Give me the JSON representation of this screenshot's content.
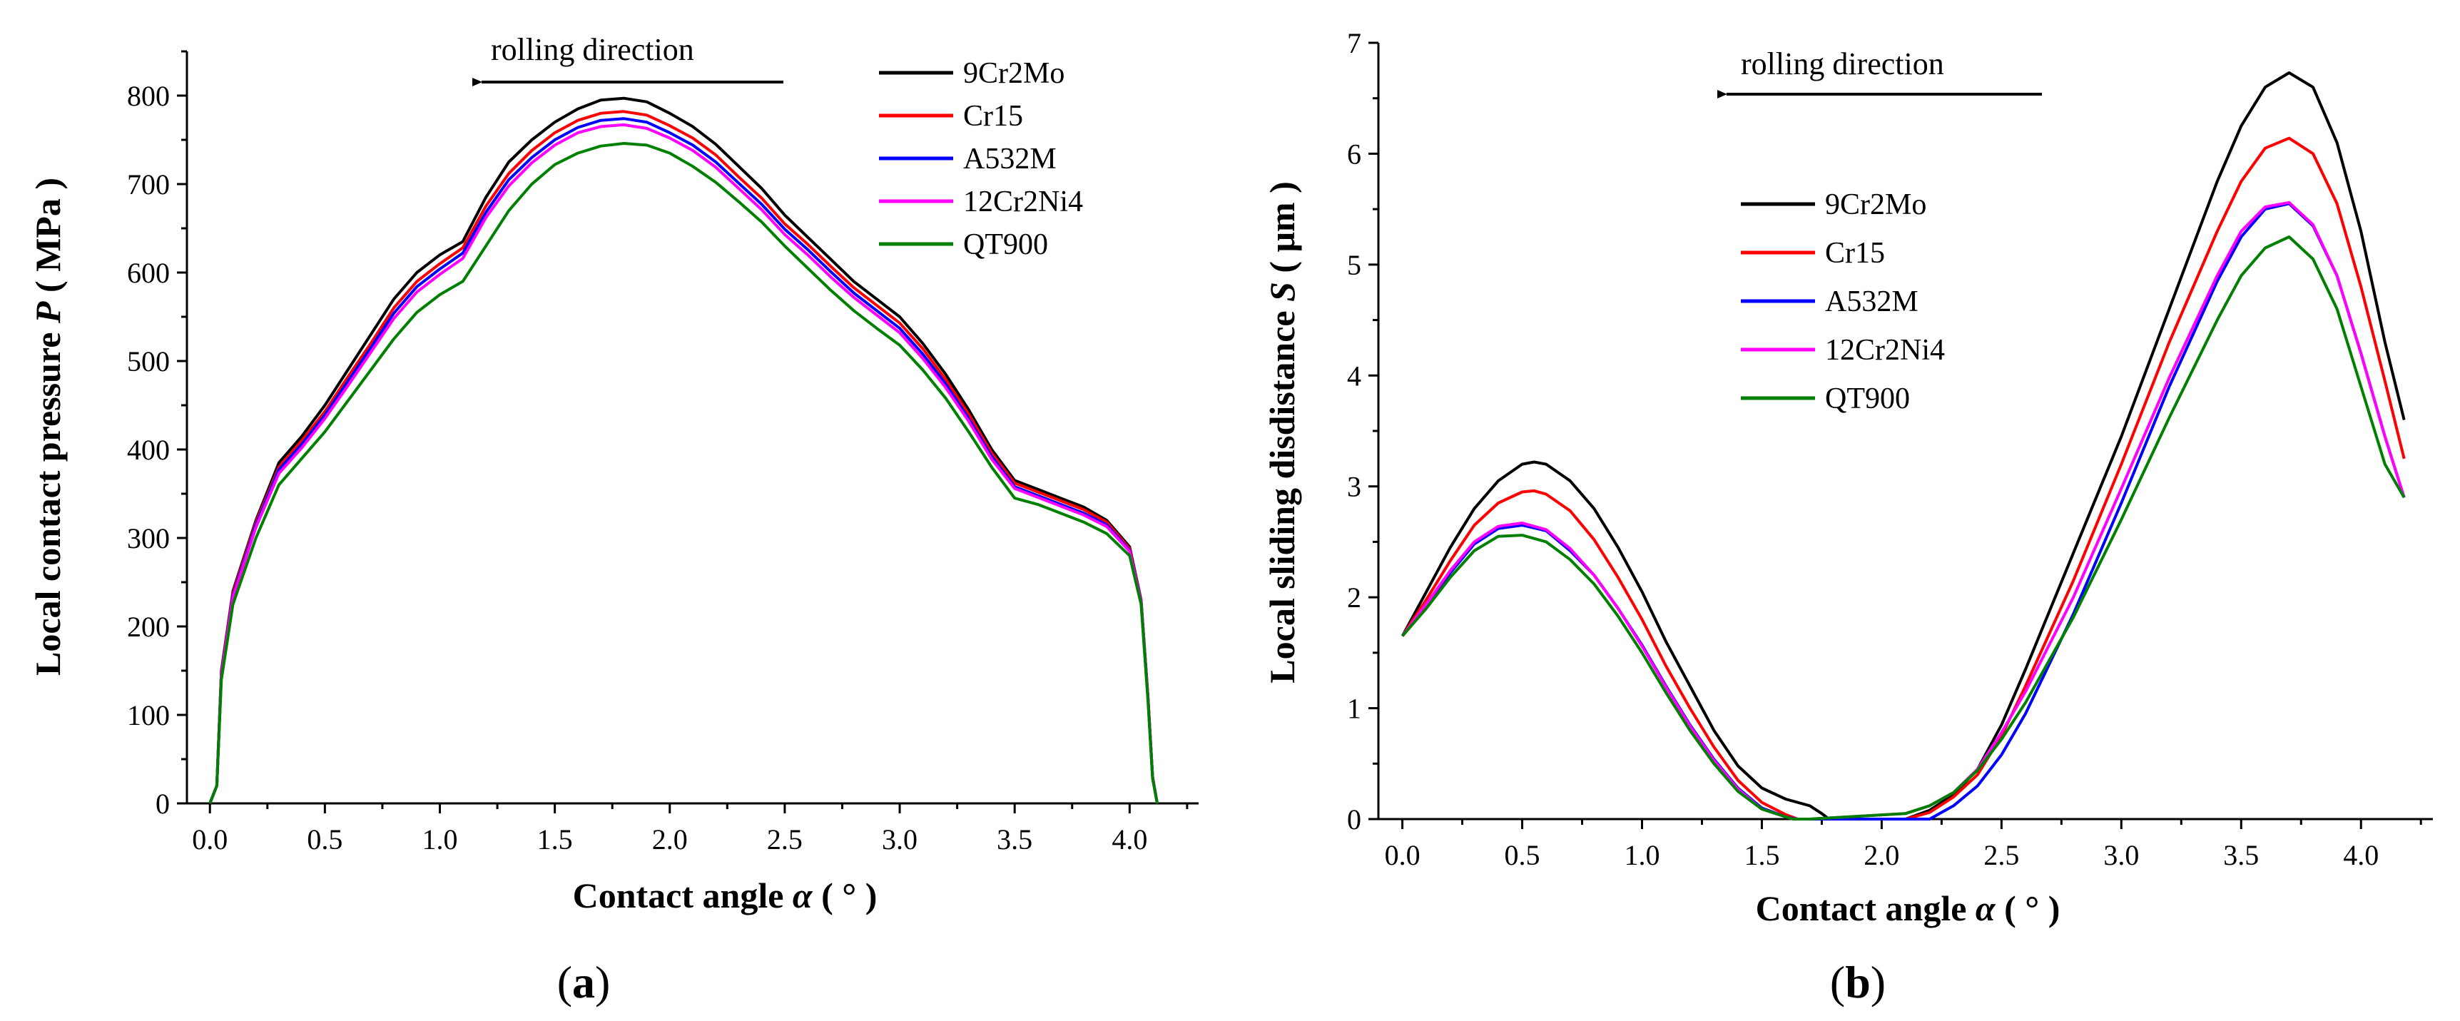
{
  "figure": {
    "panel_labels": [
      {
        "open": "(",
        "letter": "a",
        "close": ")"
      },
      {
        "open": "(",
        "letter": "b",
        "close": ")"
      }
    ]
  },
  "colors": {
    "9Cr2Mo": "#000000",
    "Cr15": "#ff0000",
    "A532M": "#0000ff",
    "12Cr2Ni4": "#ff00ff",
    "QT900": "#008000"
  },
  "chart_data": [
    {
      "type": "line",
      "panel": "a",
      "title": "",
      "annotation": "rolling direction",
      "xlabel": {
        "main": "Contact angle ",
        "var": "α",
        "unit": " ( ° )"
      },
      "ylabel": {
        "main": "Local contact pressure ",
        "var": "P",
        "unit": " ( MPa )"
      },
      "xlim": [
        -0.1,
        4.3
      ],
      "ylim": [
        0,
        850
      ],
      "xticks": [
        "0.0",
        "0.5",
        "1.0",
        "1.5",
        "2.0",
        "2.5",
        "3.0",
        "3.5",
        "4.0"
      ],
      "yticks": [
        "0",
        "100",
        "200",
        "300",
        "400",
        "500",
        "600",
        "700",
        "800"
      ],
      "legend_position": "top-right",
      "series": [
        {
          "name": "9Cr2Mo",
          "x": [
            0.0,
            0.03,
            0.05,
            0.1,
            0.2,
            0.3,
            0.4,
            0.5,
            0.6,
            0.7,
            0.8,
            0.9,
            1.0,
            1.1,
            1.2,
            1.3,
            1.4,
            1.5,
            1.6,
            1.7,
            1.8,
            1.9,
            2.0,
            2.1,
            2.2,
            2.3,
            2.4,
            2.5,
            2.6,
            2.7,
            2.8,
            2.9,
            3.0,
            3.1,
            3.2,
            3.3,
            3.4,
            3.5,
            3.6,
            3.7,
            3.8,
            3.9,
            4.0,
            4.05,
            4.08,
            4.1,
            4.12
          ],
          "y": [
            0,
            20,
            150,
            240,
            320,
            385,
            415,
            450,
            490,
            530,
            570,
            600,
            620,
            635,
            685,
            725,
            750,
            770,
            785,
            795,
            797,
            793,
            780,
            765,
            745,
            720,
            695,
            665,
            640,
            615,
            590,
            570,
            550,
            520,
            485,
            445,
            400,
            365,
            355,
            345,
            335,
            320,
            290,
            230,
            120,
            30,
            0
          ]
        },
        {
          "name": "Cr15",
          "x": [
            0.0,
            0.03,
            0.05,
            0.1,
            0.2,
            0.3,
            0.4,
            0.5,
            0.6,
            0.7,
            0.8,
            0.9,
            1.0,
            1.1,
            1.2,
            1.3,
            1.4,
            1.5,
            1.6,
            1.7,
            1.8,
            1.9,
            2.0,
            2.1,
            2.2,
            2.3,
            2.4,
            2.5,
            2.6,
            2.7,
            2.8,
            2.9,
            3.0,
            3.1,
            3.2,
            3.3,
            3.4,
            3.5,
            3.6,
            3.7,
            3.8,
            3.9,
            4.0,
            4.05,
            4.08,
            4.1,
            4.12
          ],
          "y": [
            0,
            20,
            148,
            238,
            318,
            380,
            410,
            443,
            482,
            520,
            560,
            590,
            610,
            628,
            675,
            712,
            738,
            758,
            772,
            780,
            782,
            778,
            766,
            752,
            733,
            708,
            684,
            655,
            632,
            607,
            583,
            563,
            543,
            514,
            479,
            440,
            396,
            362,
            352,
            342,
            332,
            318,
            288,
            229,
            119,
            30,
            0
          ]
        },
        {
          "name": "A532M",
          "x": [
            0.0,
            0.03,
            0.05,
            0.1,
            0.2,
            0.3,
            0.4,
            0.5,
            0.6,
            0.7,
            0.8,
            0.9,
            1.0,
            1.1,
            1.2,
            1.3,
            1.4,
            1.5,
            1.6,
            1.7,
            1.8,
            1.9,
            2.0,
            2.1,
            2.2,
            2.3,
            2.4,
            2.5,
            2.6,
            2.7,
            2.8,
            2.9,
            3.0,
            3.1,
            3.2,
            3.3,
            3.4,
            3.5,
            3.6,
            3.7,
            3.8,
            3.9,
            4.0,
            4.05,
            4.08,
            4.1,
            4.12
          ],
          "y": [
            0,
            20,
            146,
            235,
            315,
            377,
            406,
            439,
            477,
            515,
            554,
            584,
            604,
            622,
            668,
            705,
            730,
            750,
            764,
            772,
            774,
            770,
            758,
            744,
            725,
            701,
            677,
            649,
            626,
            601,
            577,
            557,
            537,
            508,
            474,
            435,
            392,
            358,
            348,
            338,
            328,
            315,
            286,
            228,
            118,
            30,
            0
          ]
        },
        {
          "name": "12Cr2Ni4",
          "x": [
            0.0,
            0.03,
            0.05,
            0.1,
            0.2,
            0.3,
            0.4,
            0.5,
            0.6,
            0.7,
            0.8,
            0.9,
            1.0,
            1.1,
            1.2,
            1.3,
            1.4,
            1.5,
            1.6,
            1.7,
            1.8,
            1.9,
            2.0,
            2.1,
            2.2,
            2.3,
            2.4,
            2.5,
            2.6,
            2.7,
            2.8,
            2.9,
            3.0,
            3.1,
            3.2,
            3.3,
            3.4,
            3.5,
            3.6,
            3.7,
            3.8,
            3.9,
            4.0,
            4.05,
            4.08,
            4.1,
            4.12
          ],
          "y": [
            0,
            20,
            145,
            233,
            312,
            373,
            402,
            435,
            472,
            510,
            548,
            578,
            598,
            616,
            662,
            698,
            724,
            744,
            758,
            765,
            767,
            763,
            752,
            738,
            719,
            695,
            671,
            643,
            620,
            595,
            572,
            552,
            532,
            503,
            470,
            432,
            389,
            356,
            346,
            336,
            326,
            313,
            285,
            227,
            118,
            30,
            0
          ]
        },
        {
          "name": "QT900",
          "x": [
            0.0,
            0.03,
            0.05,
            0.1,
            0.2,
            0.3,
            0.4,
            0.5,
            0.6,
            0.7,
            0.8,
            0.9,
            1.0,
            1.1,
            1.2,
            1.3,
            1.4,
            1.5,
            1.6,
            1.7,
            1.8,
            1.9,
            2.0,
            2.1,
            2.2,
            2.3,
            2.4,
            2.5,
            2.6,
            2.7,
            2.8,
            2.9,
            3.0,
            3.1,
            3.2,
            3.3,
            3.4,
            3.5,
            3.6,
            3.7,
            3.8,
            3.9,
            4.0,
            4.05,
            4.08,
            4.1,
            4.12
          ],
          "y": [
            0,
            20,
            140,
            225,
            300,
            360,
            390,
            420,
            455,
            490,
            525,
            555,
            575,
            590,
            630,
            670,
            700,
            722,
            735,
            743,
            746,
            744,
            735,
            720,
            702,
            680,
            657,
            630,
            605,
            580,
            557,
            537,
            518,
            490,
            458,
            420,
            380,
            345,
            338,
            328,
            318,
            305,
            280,
            225,
            115,
            28,
            0
          ]
        }
      ]
    },
    {
      "type": "line",
      "panel": "b",
      "title": "",
      "annotation": "rolling direction",
      "xlabel": {
        "main": "Contact angle ",
        "var": "α",
        "unit": " ( ° )"
      },
      "ylabel": {
        "main": "Local sliding disdistance ",
        "var": "S",
        "unit": " ( μm )"
      },
      "xlim": [
        -0.1,
        4.3
      ],
      "ylim": [
        0,
        7
      ],
      "xticks": [
        "0.0",
        "0.5",
        "1.0",
        "1.5",
        "2.0",
        "2.5",
        "3.0",
        "3.5",
        "4.0"
      ],
      "yticks": [
        "0",
        "1",
        "2",
        "3",
        "4",
        "5",
        "6",
        "7"
      ],
      "legend_position": "upper-center",
      "series": [
        {
          "name": "9Cr2Mo",
          "x": [
            0.0,
            0.1,
            0.2,
            0.3,
            0.4,
            0.5,
            0.55,
            0.6,
            0.7,
            0.8,
            0.9,
            1.0,
            1.1,
            1.2,
            1.3,
            1.4,
            1.5,
            1.6,
            1.7,
            1.75,
            1.78,
            1.8,
            2.1,
            2.2,
            2.3,
            2.4,
            2.5,
            2.6,
            2.8,
            3.0,
            3.2,
            3.4,
            3.5,
            3.6,
            3.7,
            3.8,
            3.9,
            4.0,
            4.1,
            4.18
          ],
          "y": [
            1.65,
            2.05,
            2.45,
            2.8,
            3.05,
            3.2,
            3.22,
            3.2,
            3.05,
            2.8,
            2.45,
            2.05,
            1.6,
            1.2,
            0.8,
            0.48,
            0.28,
            0.18,
            0.12,
            0.05,
            0.0,
            0.0,
            0.0,
            0.08,
            0.22,
            0.45,
            0.85,
            1.35,
            2.4,
            3.45,
            4.6,
            5.75,
            6.25,
            6.6,
            6.73,
            6.6,
            6.1,
            5.3,
            4.3,
            3.6
          ]
        },
        {
          "name": "Cr15",
          "x": [
            0.0,
            0.1,
            0.2,
            0.3,
            0.4,
            0.5,
            0.55,
            0.6,
            0.7,
            0.8,
            0.9,
            1.0,
            1.1,
            1.2,
            1.3,
            1.4,
            1.5,
            1.6,
            1.65,
            1.7,
            2.1,
            2.2,
            2.3,
            2.4,
            2.5,
            2.6,
            2.8,
            3.0,
            3.2,
            3.4,
            3.5,
            3.6,
            3.7,
            3.8,
            3.9,
            4.0,
            4.1,
            4.18
          ],
          "y": [
            1.65,
            1.98,
            2.33,
            2.65,
            2.85,
            2.95,
            2.96,
            2.93,
            2.78,
            2.52,
            2.18,
            1.8,
            1.38,
            1.0,
            0.65,
            0.35,
            0.15,
            0.04,
            0.0,
            0.0,
            0.0,
            0.06,
            0.2,
            0.4,
            0.75,
            1.2,
            2.15,
            3.2,
            4.3,
            5.3,
            5.75,
            6.05,
            6.14,
            6.0,
            5.55,
            4.8,
            3.95,
            3.25
          ]
        },
        {
          "name": "A532M",
          "x": [
            0.0,
            0.1,
            0.2,
            0.3,
            0.4,
            0.5,
            0.6,
            0.7,
            0.8,
            0.9,
            1.0,
            1.1,
            1.2,
            1.3,
            1.4,
            1.5,
            1.6,
            1.64,
            1.7,
            2.2,
            2.3,
            2.4,
            2.5,
            2.6,
            2.8,
            3.0,
            3.2,
            3.4,
            3.5,
            3.6,
            3.7,
            3.8,
            3.9,
            4.0,
            4.1,
            4.18
          ],
          "y": [
            1.65,
            1.93,
            2.22,
            2.48,
            2.62,
            2.65,
            2.6,
            2.42,
            2.2,
            1.9,
            1.57,
            1.2,
            0.85,
            0.54,
            0.28,
            0.1,
            0.02,
            0.0,
            0.0,
            0.0,
            0.12,
            0.3,
            0.58,
            0.95,
            1.85,
            2.85,
            3.9,
            4.85,
            5.25,
            5.5,
            5.55,
            5.35,
            4.9,
            4.2,
            3.45,
            2.9
          ]
        },
        {
          "name": "12Cr2Ni4",
          "x": [
            0.0,
            0.1,
            0.2,
            0.3,
            0.4,
            0.5,
            0.6,
            0.7,
            0.8,
            0.9,
            1.0,
            1.1,
            1.2,
            1.3,
            1.4,
            1.5,
            1.6,
            1.63,
            1.7,
            2.1,
            2.2,
            2.3,
            2.4,
            2.5,
            2.6,
            2.8,
            3.0,
            3.2,
            3.4,
            3.5,
            3.6,
            3.7,
            3.8,
            3.9,
            4.0,
            4.1,
            4.18
          ],
          "y": [
            1.65,
            1.94,
            2.24,
            2.5,
            2.64,
            2.67,
            2.61,
            2.44,
            2.2,
            1.9,
            1.56,
            1.19,
            0.84,
            0.53,
            0.27,
            0.09,
            0.02,
            0.0,
            0.0,
            0.05,
            0.12,
            0.24,
            0.45,
            0.78,
            1.15,
            2.0,
            2.98,
            3.98,
            4.9,
            5.3,
            5.52,
            5.56,
            5.36,
            4.9,
            4.2,
            3.45,
            2.9
          ]
        },
        {
          "name": "QT900",
          "x": [
            0.0,
            0.1,
            0.2,
            0.3,
            0.4,
            0.5,
            0.6,
            0.7,
            0.8,
            0.9,
            1.0,
            1.1,
            1.2,
            1.3,
            1.4,
            1.5,
            1.6,
            1.63,
            1.7,
            2.1,
            2.2,
            2.3,
            2.4,
            2.5,
            2.6,
            2.8,
            3.0,
            3.2,
            3.4,
            3.5,
            3.6,
            3.7,
            3.8,
            3.9,
            4.0,
            4.1,
            4.18
          ],
          "y": [
            1.65,
            1.9,
            2.18,
            2.42,
            2.55,
            2.56,
            2.5,
            2.34,
            2.12,
            1.83,
            1.5,
            1.14,
            0.8,
            0.5,
            0.25,
            0.09,
            0.02,
            0.0,
            0.0,
            0.05,
            0.12,
            0.24,
            0.44,
            0.72,
            1.05,
            1.82,
            2.7,
            3.62,
            4.5,
            4.9,
            5.15,
            5.25,
            5.05,
            4.6,
            3.9,
            3.2,
            2.9
          ]
        }
      ]
    }
  ]
}
